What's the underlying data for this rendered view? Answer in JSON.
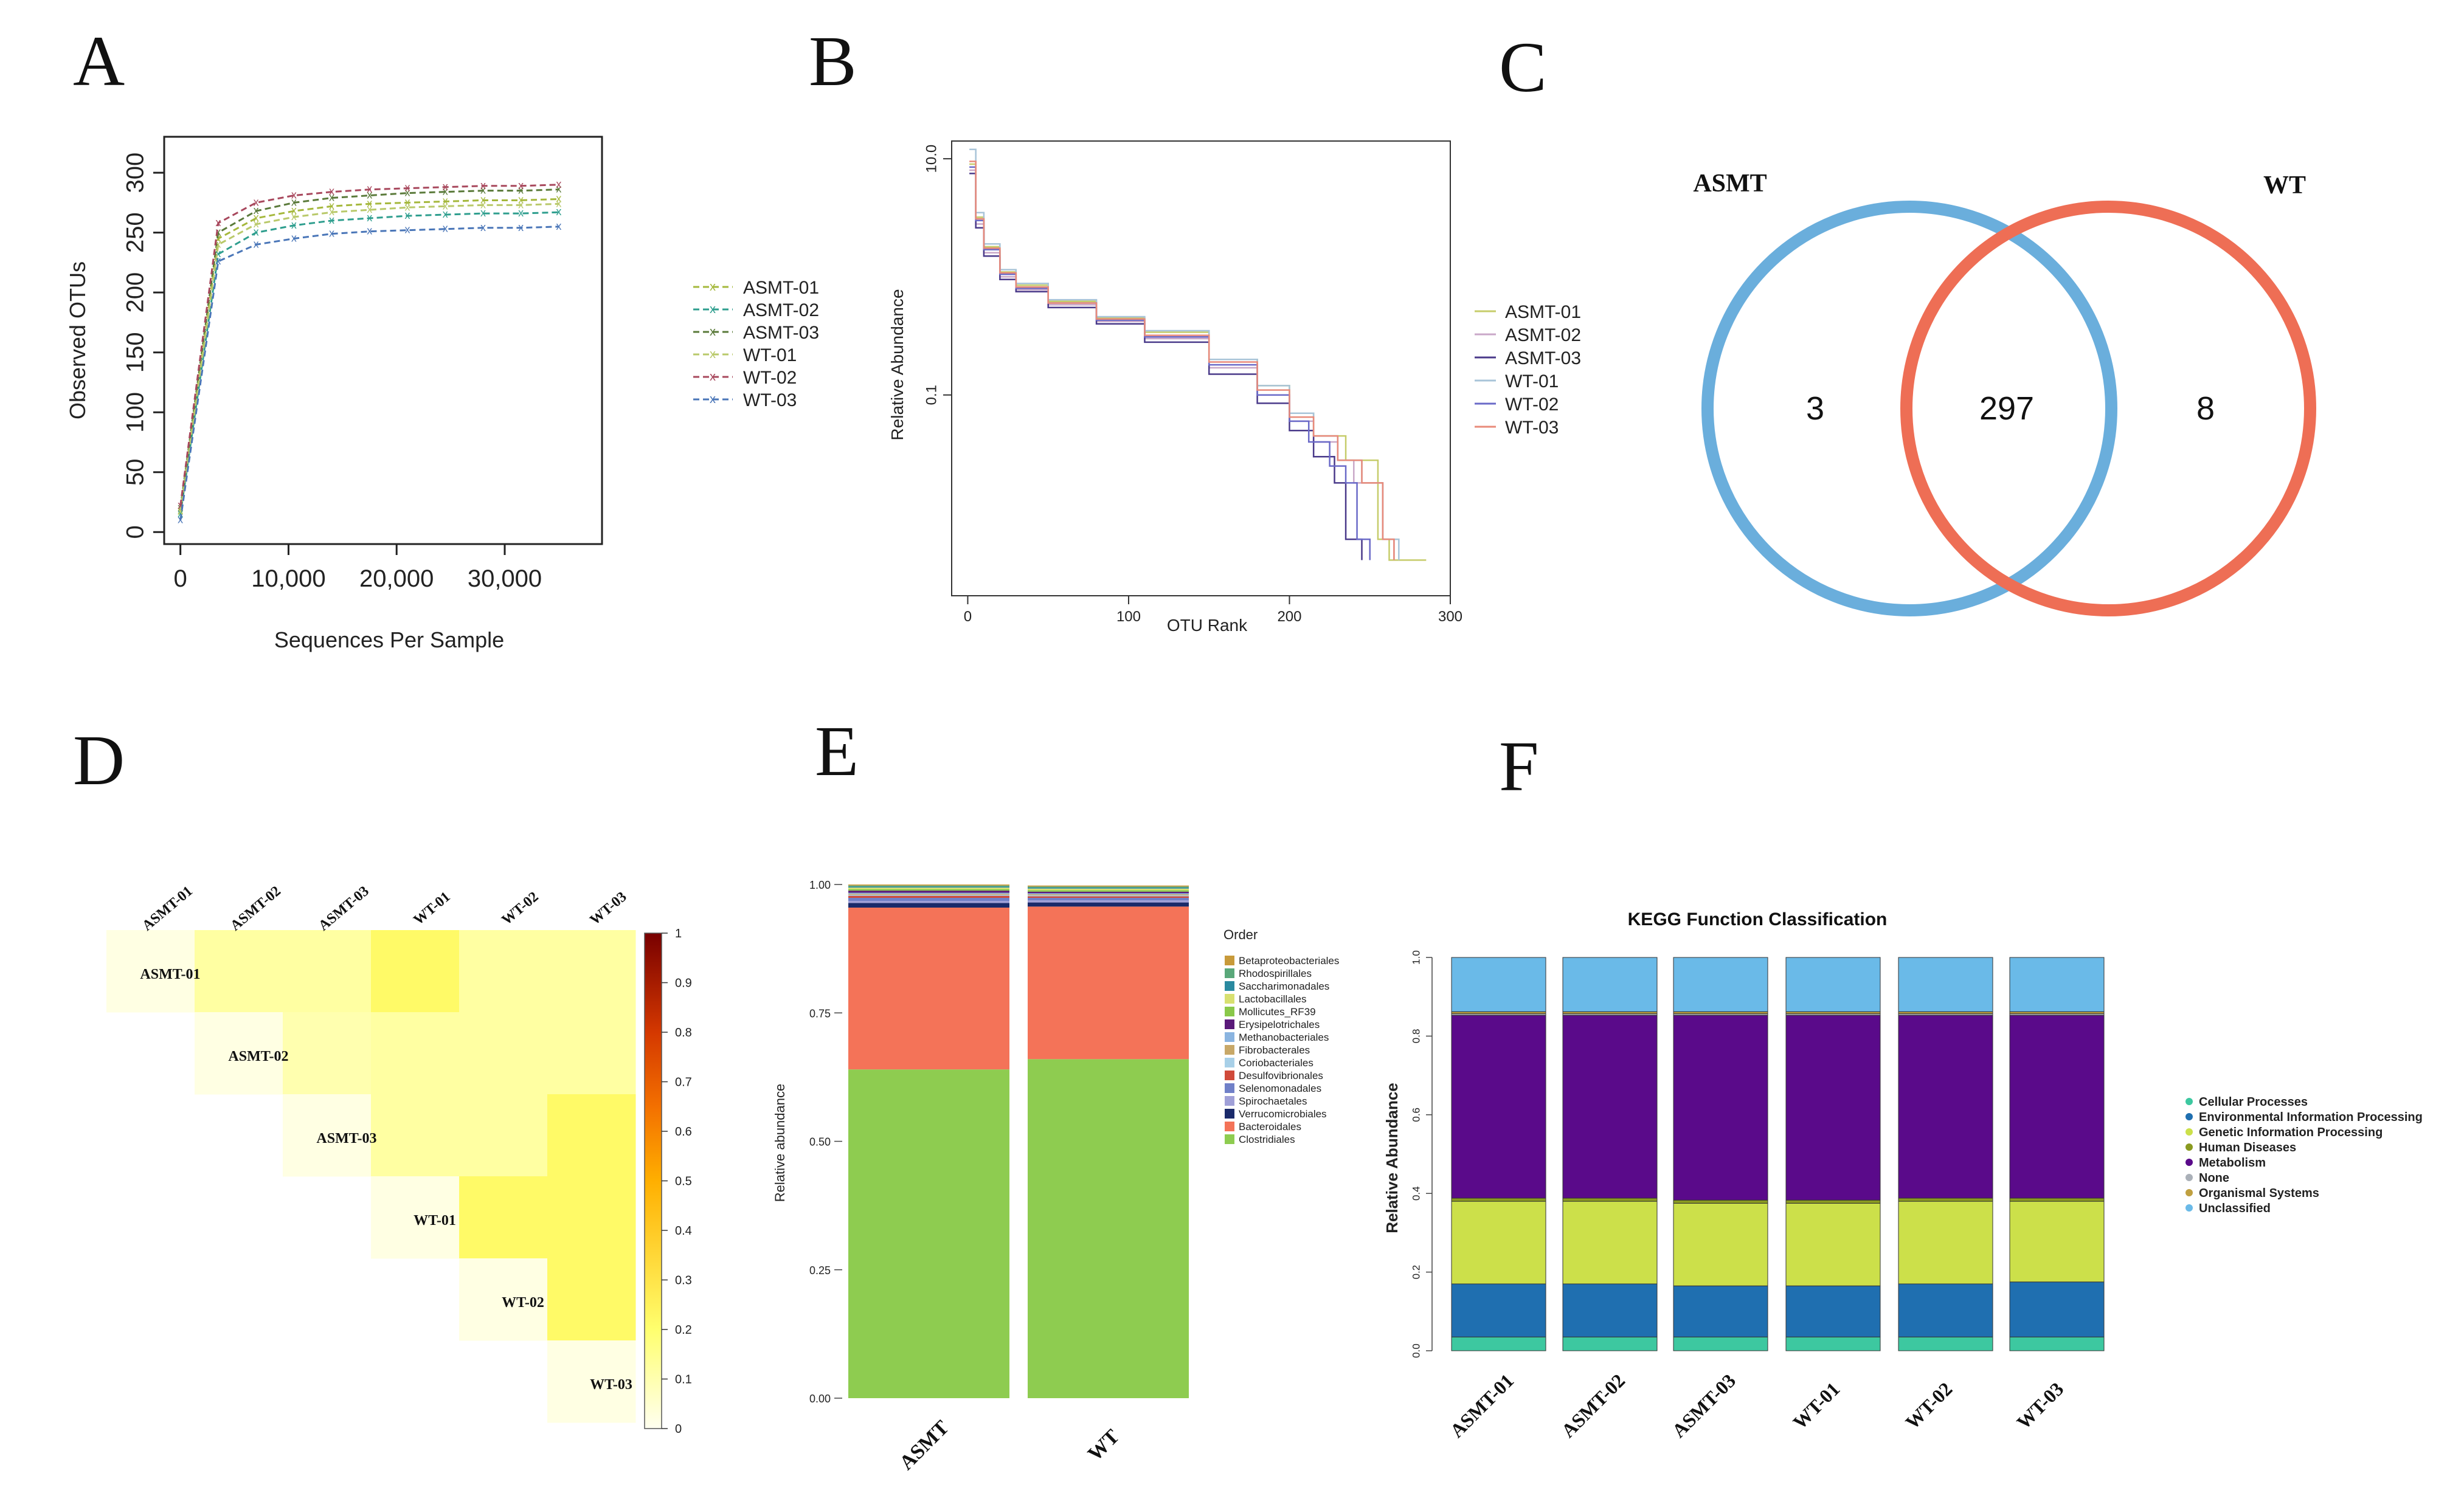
{
  "panels": [
    "A",
    "B",
    "C",
    "D",
    "E",
    "F"
  ],
  "chart_data": [
    {
      "id": "A",
      "type": "line",
      "xlabel": "Sequences Per Sample",
      "ylabel": "Observed OTUs",
      "xlim": [
        -1500,
        39000
      ],
      "ylim": [
        -10,
        330
      ],
      "xticks": [
        0,
        10000,
        20000,
        30000
      ],
      "xticklabels": [
        "0",
        "10,000",
        "20,000",
        "30,000"
      ],
      "yticks": [
        0,
        50,
        100,
        150,
        200,
        250,
        300
      ],
      "yticklabels": [
        "0",
        "50",
        "100",
        "150",
        "200",
        "250",
        "300"
      ],
      "x": [
        0,
        3500,
        7000,
        10500,
        14000,
        17500,
        21000,
        24500,
        28000,
        31500,
        35000
      ],
      "series": [
        {
          "name": "ASMT-01",
          "color": "#a5b83c",
          "marker": "x",
          "values": [
            18,
            245,
            262,
            268,
            272,
            274,
            275,
            276,
            277,
            277,
            278
          ]
        },
        {
          "name": "ASMT-02",
          "color": "#2e9e8e",
          "marker": "x",
          "values": [
            15,
            232,
            250,
            256,
            260,
            262,
            264,
            265,
            266,
            266,
            267
          ]
        },
        {
          "name": "ASMT-03",
          "color": "#5a7a3a",
          "marker": "x",
          "values": [
            20,
            250,
            268,
            275,
            279,
            281,
            283,
            284,
            285,
            285,
            286
          ]
        },
        {
          "name": "WT-01",
          "color": "#b9c96a",
          "marker": "x",
          "values": [
            17,
            240,
            257,
            263,
            267,
            269,
            271,
            272,
            273,
            273,
            274
          ]
        },
        {
          "name": "WT-02",
          "color": "#a8485d",
          "marker": "x",
          "values": [
            22,
            258,
            275,
            281,
            284,
            286,
            287,
            288,
            289,
            289,
            290
          ]
        },
        {
          "name": "WT-03",
          "color": "#4a76b8",
          "marker": "x",
          "values": [
            10,
            226,
            240,
            245,
            249,
            251,
            252,
            253,
            254,
            254,
            255
          ]
        }
      ],
      "legend": "right"
    },
    {
      "id": "B",
      "type": "line",
      "xlabel": "OTU Rank",
      "ylabel": "Relative Abundance",
      "yscale": "log",
      "xlim": [
        -10,
        300
      ],
      "ylim_log10": [
        -2.7,
        1.15
      ],
      "xticks": [
        0,
        100,
        200,
        300
      ],
      "xticklabels": [
        "0",
        "100",
        "200",
        "300"
      ],
      "yticks": [
        0.1,
        10
      ],
      "yticklabels": [
        "0.1",
        "10.0"
      ],
      "series": [
        {
          "name": "ASMT-01",
          "color": "#c6cc6a",
          "x": [
            1,
            5,
            10,
            20,
            30,
            50,
            80,
            110,
            150,
            180,
            200,
            215,
            225,
            235,
            245,
            255,
            262,
            285
          ],
          "values": [
            9,
            3.2,
            1.8,
            1.1,
            0.85,
            0.62,
            0.45,
            0.34,
            0.2,
            0.12,
            0.07,
            0.045,
            0.045,
            0.028,
            0.028,
            0.006,
            0.004,
            0.004
          ]
        },
        {
          "name": "ASMT-02",
          "color": "#c9a8c8",
          "x": [
            1,
            5,
            10,
            20,
            30,
            50,
            80,
            110,
            150,
            180,
            200,
            215,
            230,
            240,
            250,
            258,
            265
          ],
          "values": [
            8,
            2.8,
            1.6,
            1.0,
            0.78,
            0.58,
            0.42,
            0.3,
            0.17,
            0.1,
            0.06,
            0.04,
            0.028,
            0.018,
            0.018,
            0.006,
            0.004
          ]
        },
        {
          "name": "ASMT-03",
          "color": "#4a3a8a",
          "x": [
            1,
            5,
            10,
            20,
            30,
            50,
            80,
            110,
            150,
            180,
            200,
            215,
            228,
            235,
            245
          ],
          "values": [
            7.5,
            2.6,
            1.5,
            0.95,
            0.75,
            0.55,
            0.4,
            0.28,
            0.15,
            0.085,
            0.05,
            0.03,
            0.018,
            0.006,
            0.004
          ]
        },
        {
          "name": "WT-01",
          "color": "#a8c4d8",
          "x": [
            1,
            5,
            10,
            20,
            30,
            50,
            80,
            110,
            150,
            180,
            200,
            215,
            230,
            245,
            258,
            268
          ],
          "values": [
            12,
            3.5,
            1.9,
            1.15,
            0.88,
            0.64,
            0.46,
            0.35,
            0.2,
            0.12,
            0.07,
            0.045,
            0.028,
            0.018,
            0.006,
            0.004
          ]
        },
        {
          "name": "WT-02",
          "color": "#6a6ac8",
          "x": [
            1,
            5,
            10,
            20,
            30,
            50,
            80,
            110,
            150,
            180,
            200,
            212,
            225,
            235,
            242,
            250
          ],
          "values": [
            8.5,
            3.0,
            1.7,
            1.05,
            0.8,
            0.6,
            0.43,
            0.31,
            0.18,
            0.1,
            0.06,
            0.04,
            0.025,
            0.018,
            0.006,
            0.004
          ]
        },
        {
          "name": "WT-03",
          "color": "#e88a7a",
          "x": [
            1,
            5,
            10,
            20,
            30,
            50,
            80,
            110,
            150,
            180,
            200,
            215,
            230,
            245,
            258,
            265
          ],
          "values": [
            9.5,
            3.1,
            1.75,
            1.08,
            0.82,
            0.6,
            0.44,
            0.32,
            0.19,
            0.11,
            0.065,
            0.045,
            0.028,
            0.018,
            0.006,
            0.004
          ]
        }
      ],
      "legend": "right"
    },
    {
      "id": "C",
      "type": "venn",
      "sets": [
        {
          "name": "ASMT",
          "color": "#6aaedc"
        },
        {
          "name": "WT",
          "color": "#ee6e55"
        }
      ],
      "only_left": "3",
      "intersection": "297",
      "only_right": "8"
    },
    {
      "id": "D",
      "type": "heatmap",
      "labels": [
        "ASMT-01",
        "ASMT-02",
        "ASMT-03",
        "WT-01",
        "WT-02",
        "WT-03"
      ],
      "matrix_upper": [
        [
          0.02,
          0.12,
          0.12,
          0.22,
          0.12,
          0.12
        ],
        [
          null,
          0.02,
          0.1,
          0.12,
          0.12,
          0.12
        ],
        [
          null,
          null,
          0.02,
          0.12,
          0.12,
          0.22
        ],
        [
          null,
          null,
          null,
          0.02,
          0.22,
          0.22
        ],
        [
          null,
          null,
          null,
          null,
          0.02,
          0.22
        ],
        [
          null,
          null,
          null,
          null,
          null,
          0.02
        ]
      ],
      "colorbar_ticks": [
        0,
        0.1,
        0.2,
        0.3,
        0.4,
        0.5,
        0.6,
        0.7,
        0.8,
        0.9,
        1
      ],
      "colorbar_labels": [
        "0",
        "0.1",
        "0.2",
        "0.3",
        "0.4",
        "0.5",
        "0.6",
        "0.7",
        "0.8",
        "0.9",
        "1"
      ],
      "colorbar_range": [
        0,
        1
      ]
    },
    {
      "id": "E",
      "type": "bar",
      "stacked": true,
      "categories": [
        "ASMT",
        "WT"
      ],
      "ylabel": "Relative abundance",
      "ylim": [
        0,
        1
      ],
      "yticks": [
        0,
        0.25,
        0.5,
        0.75,
        1.0
      ],
      "yticklabels": [
        "0.00",
        "0.25",
        "0.50",
        "0.75",
        "1.00"
      ],
      "legend_title": "Order",
      "series": [
        {
          "name": "Betaproteobacteriales",
          "color": "#c89a3a",
          "values": [
            0.002,
            0.002
          ]
        },
        {
          "name": "Rhodospirillales",
          "color": "#5aa87a",
          "values": [
            0.002,
            0.002
          ]
        },
        {
          "name": "Saccharimonadales",
          "color": "#2a8aa0",
          "values": [
            0.002,
            0.002
          ]
        },
        {
          "name": "Lactobacillales",
          "color": "#d8e070",
          "values": [
            0.003,
            0.003
          ]
        },
        {
          "name": "Mollicutes_RF39",
          "color": "#8ac84a",
          "values": [
            0.003,
            0.003
          ]
        },
        {
          "name": "Erysipelotrichales",
          "color": "#5a1a7a",
          "values": [
            0.004,
            0.003
          ]
        },
        {
          "name": "Methanobacteriales",
          "color": "#8ab4e0",
          "values": [
            0.002,
            0.002
          ]
        },
        {
          "name": "Fibrobacterales",
          "color": "#c8a868",
          "values": [
            0.002,
            0.002
          ]
        },
        {
          "name": "Coriobacteriales",
          "color": "#a8d0e8",
          "values": [
            0.002,
            0.002
          ]
        },
        {
          "name": "Desulfovibrionales",
          "color": "#d04a3a",
          "values": [
            0.004,
            0.003
          ]
        },
        {
          "name": "Selenomonadales",
          "color": "#7080c8",
          "values": [
            0.006,
            0.005
          ]
        },
        {
          "name": "Spirochaetales",
          "color": "#a0a0d8",
          "values": [
            0.004,
            0.004
          ]
        },
        {
          "name": "Verrucomicrobiales",
          "color": "#1a2a6a",
          "values": [
            0.009,
            0.008
          ]
        },
        {
          "name": "Bacteroidales",
          "color": "#f47358",
          "values": [
            0.315,
            0.297
          ]
        },
        {
          "name": "Clostridiales",
          "color": "#8ecc50",
          "values": [
            0.64,
            0.66
          ]
        }
      ]
    },
    {
      "id": "F",
      "type": "bar",
      "stacked": true,
      "title": "KEGG Function Classification",
      "ylabel": "Relative Abundance",
      "categories": [
        "ASMT-01",
        "ASMT-02",
        "ASMT-03",
        "WT-01",
        "WT-02",
        "WT-03"
      ],
      "ylim": [
        0,
        1
      ],
      "yticks": [
        0,
        0.2,
        0.4,
        0.6,
        0.8,
        1.0
      ],
      "yticklabels": [
        "0.0",
        "0.2",
        "0.4",
        "0.6",
        "0.8",
        "1.0"
      ],
      "series": [
        {
          "name": "Cellular Processes",
          "color": "#3dc8a0",
          "values": [
            0.035,
            0.035,
            0.035,
            0.035,
            0.035,
            0.035
          ]
        },
        {
          "name": "Environmental Information Processing",
          "color": "#1f6fb0",
          "values": [
            0.135,
            0.135,
            0.13,
            0.13,
            0.135,
            0.14
          ]
        },
        {
          "name": "Genetic Information Processing",
          "color": "#cce04a",
          "values": [
            0.21,
            0.21,
            0.21,
            0.21,
            0.21,
            0.205
          ]
        },
        {
          "name": "Human Diseases",
          "color": "#8a9a20",
          "values": [
            0.008,
            0.008,
            0.008,
            0.008,
            0.008,
            0.008
          ]
        },
        {
          "name": "Metabolism",
          "color": "#5a0a8a",
          "values": [
            0.465,
            0.465,
            0.47,
            0.47,
            0.465,
            0.465
          ]
        },
        {
          "name": "None",
          "color": "#aab0b8",
          "values": [
            0.004,
            0.004,
            0.004,
            0.004,
            0.004,
            0.004
          ]
        },
        {
          "name": "Organismal Systems",
          "color": "#c0a040",
          "values": [
            0.005,
            0.005,
            0.005,
            0.005,
            0.005,
            0.005
          ]
        },
        {
          "name": "Unclassified",
          "color": "#6abae8",
          "values": [
            0.138,
            0.138,
            0.138,
            0.138,
            0.138,
            0.138
          ]
        }
      ],
      "legend": "right"
    }
  ]
}
